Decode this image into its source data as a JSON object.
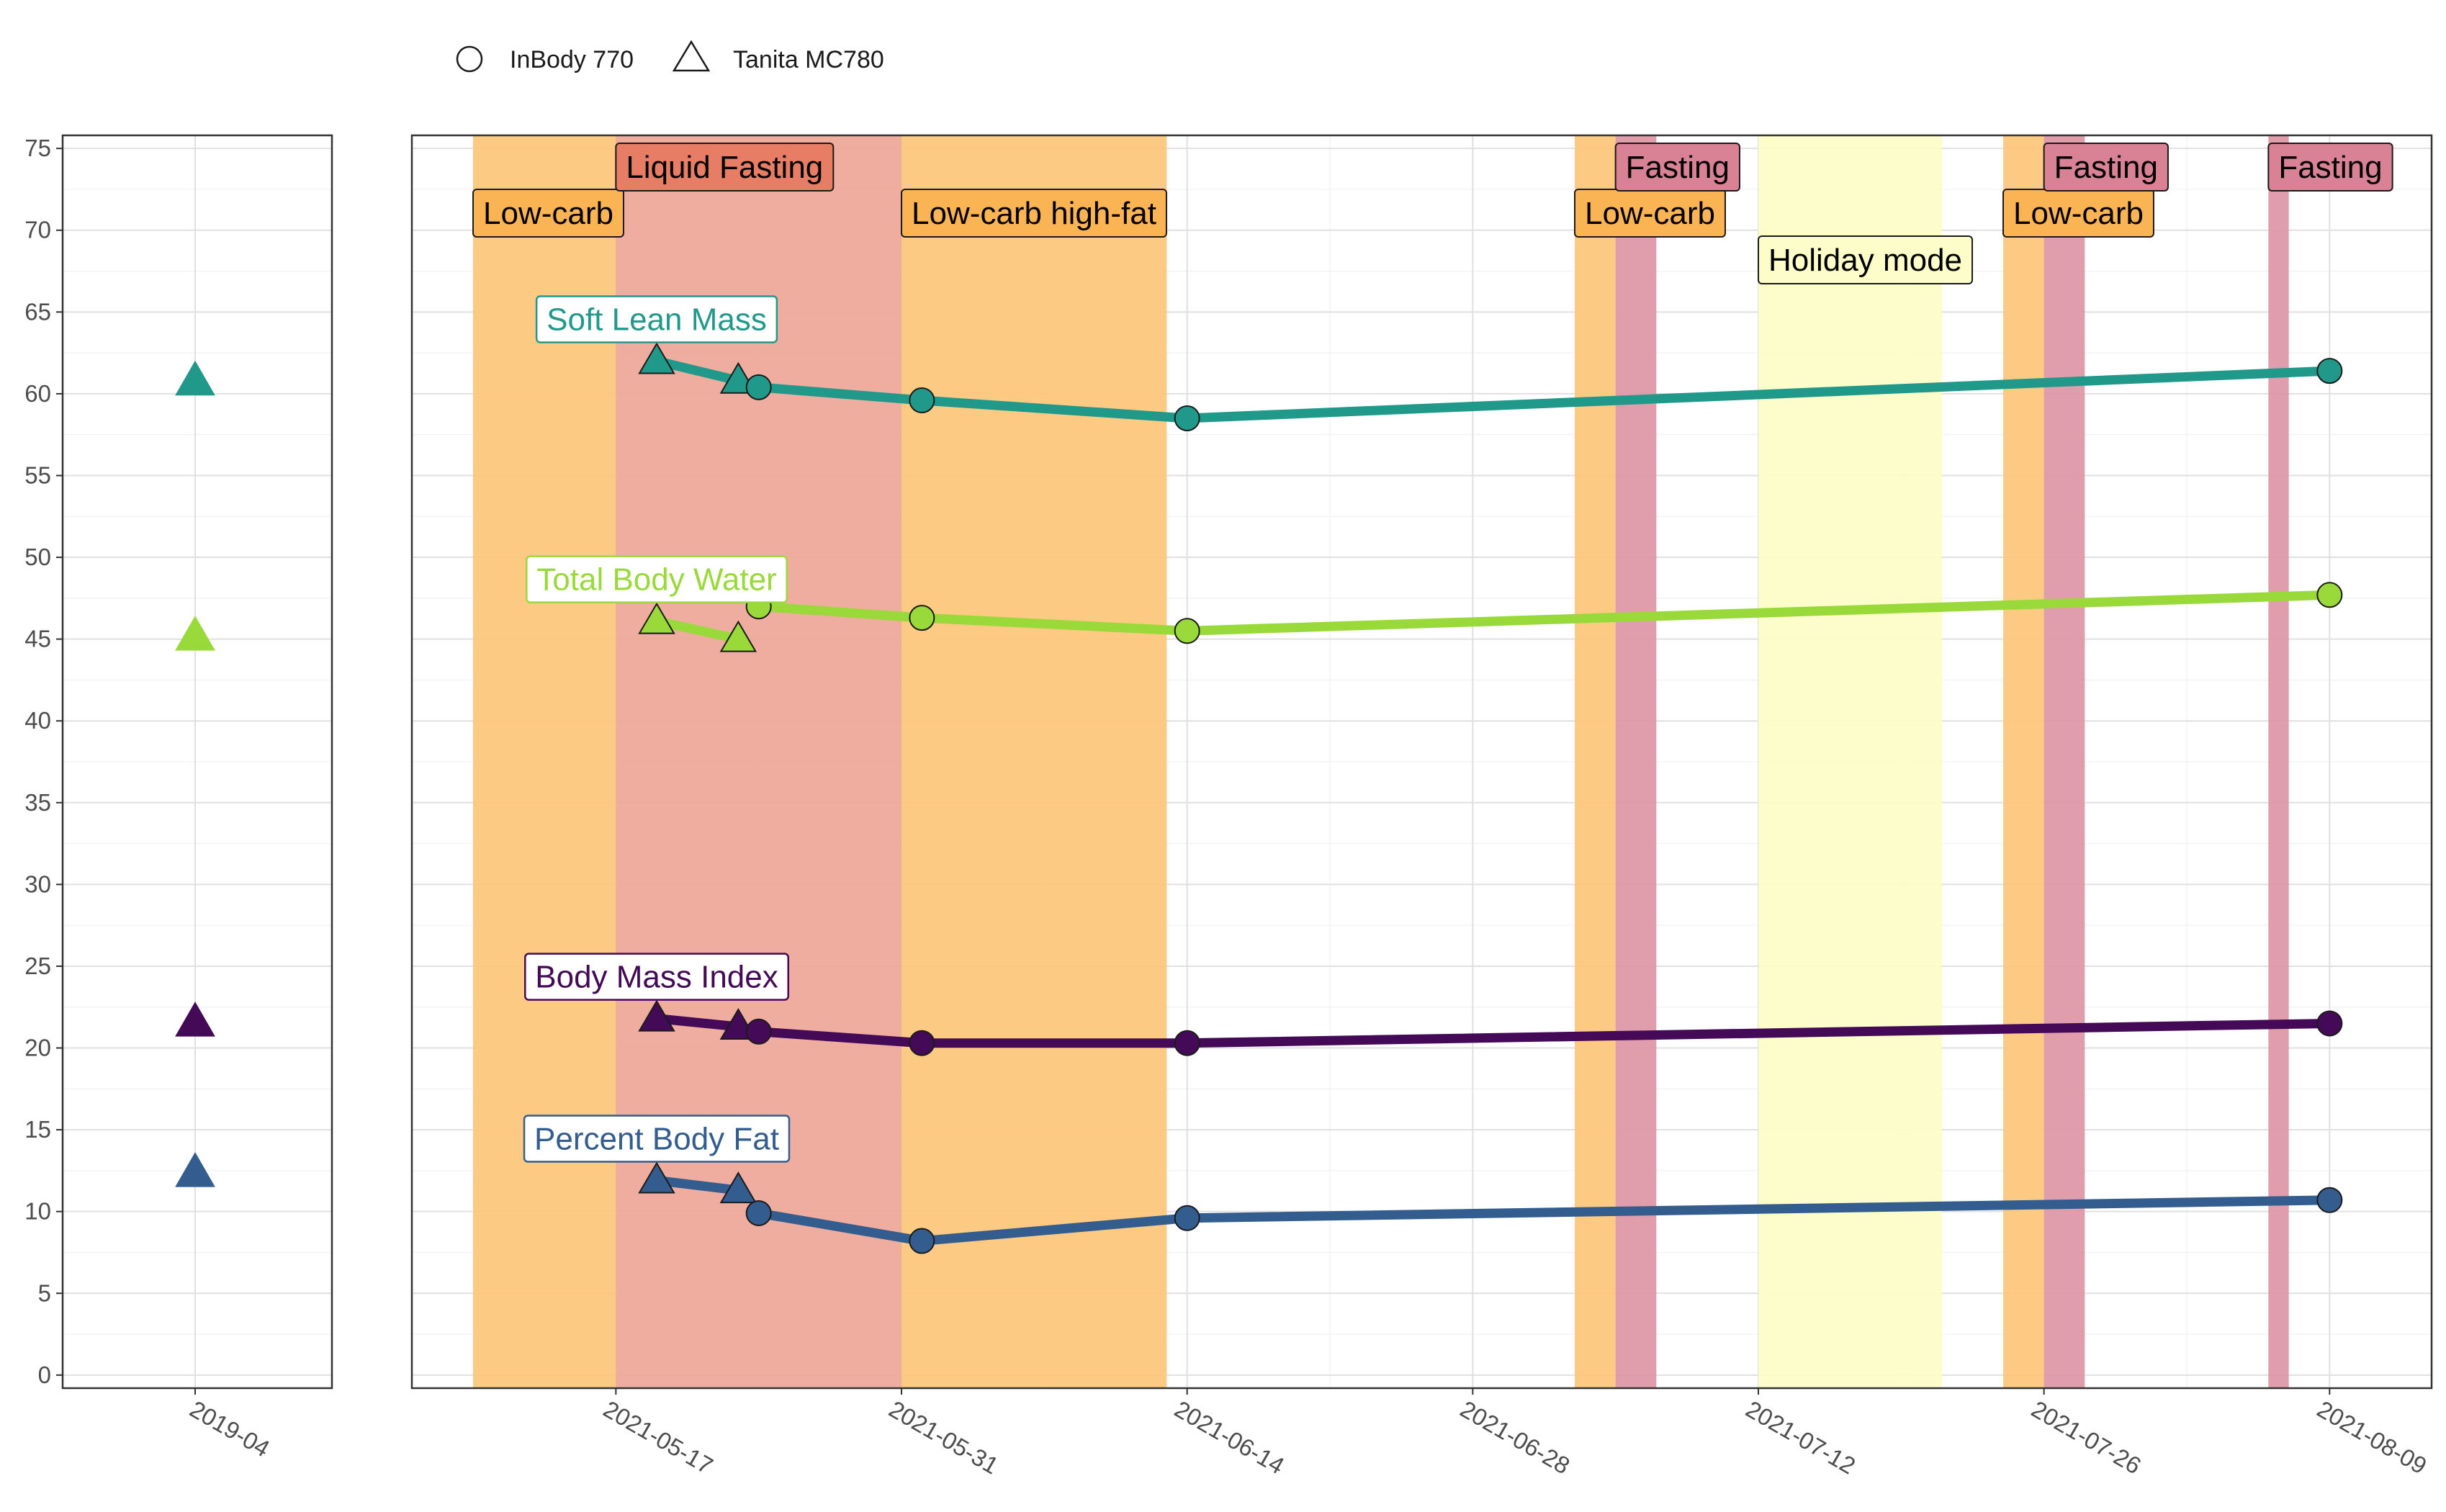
{
  "legend": {
    "items": [
      {
        "shape": "circle",
        "label": "InBody 770"
      },
      {
        "shape": "triangle",
        "label": "Tanita MC780"
      }
    ]
  },
  "chart_data": [
    {
      "type": "scatter",
      "panel": "left",
      "x_tick_labels": [
        "2019-04"
      ],
      "ylim": [
        0,
        75
      ],
      "y_ticks": [
        0,
        5,
        10,
        15,
        20,
        25,
        30,
        35,
        40,
        45,
        50,
        55,
        60,
        65,
        70,
        75
      ],
      "grid": true,
      "series": [
        {
          "name": "Soft Lean Mass",
          "color": "#21998a",
          "points": [
            {
              "x": "2019-04",
              "y": 60.8,
              "device": "Tanita MC780"
            }
          ]
        },
        {
          "name": "Total Body Water",
          "color": "#9ad93a",
          "points": [
            {
              "x": "2019-04",
              "y": 45.2,
              "device": "Tanita MC780"
            }
          ]
        },
        {
          "name": "Body Mass Index",
          "color": "#440a57",
          "points": [
            {
              "x": "2019-04",
              "y": 21.6,
              "device": "Tanita MC780"
            }
          ]
        },
        {
          "name": "Percent Body Fat",
          "color": "#335d8e",
          "points": [
            {
              "x": "2019-04",
              "y": 12.4,
              "device": "Tanita MC780"
            }
          ]
        }
      ]
    },
    {
      "type": "line",
      "panel": "right",
      "x_tick_labels": [
        "2021-05-17",
        "2021-05-31",
        "2021-06-14",
        "2021-06-28",
        "2021-07-12",
        "2021-07-26",
        "2021-08-09"
      ],
      "xlim": [
        "2021-05-07",
        "2021-08-14"
      ],
      "ylim": [
        0,
        75
      ],
      "grid": true,
      "phases": [
        {
          "label": "Low-carb",
          "start": "2021-05-10",
          "end": "2021-05-17",
          "color": "#fdc578",
          "label_row": 2
        },
        {
          "label": "Liquid Fasting",
          "start": "2021-05-17",
          "end": "2021-05-31",
          "color": "#eda697",
          "label_row": 1
        },
        {
          "label": "Low-carb high-fat",
          "start": "2021-05-31",
          "end": "2021-06-13",
          "color": "#fdc578",
          "label_row": 2
        },
        {
          "label": "Low-carb",
          "start": "2021-07-03",
          "end": "2021-07-05",
          "color": "#fdc578",
          "label_row": 2
        },
        {
          "label": "Fasting",
          "start": "2021-07-05",
          "end": "2021-07-07",
          "color": "#dd96a5",
          "label_row": 1
        },
        {
          "label": "Holiday mode",
          "start": "2021-07-12",
          "end": "2021-07-21",
          "color": "#fcfdc6",
          "label_row": 3
        },
        {
          "label": "Low-carb",
          "start": "2021-07-24",
          "end": "2021-07-26",
          "color": "#fdc578",
          "label_row": 2
        },
        {
          "label": "Fasting",
          "start": "2021-07-26",
          "end": "2021-07-28",
          "color": "#dd96a5",
          "label_row": 1
        },
        {
          "label": "Fasting",
          "start": "2021-08-06",
          "end": "2021-08-07",
          "color": "#dd96a5",
          "label_row": 1
        }
      ],
      "series": [
        {
          "name": "Soft Lean Mass",
          "color": "#21998a",
          "label_fill": "#ffffff",
          "points": [
            {
              "x": "2021-05-19",
              "y": 62.0,
              "device": "Tanita MC780"
            },
            {
              "x": "2021-05-23",
              "y": 60.8,
              "device": "Tanita MC780"
            },
            {
              "x": "2021-05-24",
              "y": 60.4,
              "device": "InBody 770"
            },
            {
              "x": "2021-06-01",
              "y": 59.6,
              "device": "InBody 770"
            },
            {
              "x": "2021-06-14",
              "y": 58.5,
              "device": "InBody 770"
            },
            {
              "x": "2021-08-09",
              "y": 61.4,
              "device": "InBody 770"
            }
          ]
        },
        {
          "name": "Total Body Water",
          "color": "#9ad93a",
          "label_fill": "#ffffff",
          "points": [
            {
              "x": "2021-05-19",
              "y": 46.1,
              "device": "Tanita MC780"
            },
            {
              "x": "2021-05-23",
              "y": 45.0,
              "device": "Tanita MC780"
            },
            {
              "x": "2021-05-24",
              "y": 47.0,
              "device": "InBody 770"
            },
            {
              "x": "2021-06-01",
              "y": 46.3,
              "device": "InBody 770"
            },
            {
              "x": "2021-06-14",
              "y": 45.5,
              "device": "InBody 770"
            },
            {
              "x": "2021-08-09",
              "y": 47.7,
              "device": "InBody 770"
            }
          ]
        },
        {
          "name": "Body Mass Index",
          "color": "#440a57",
          "label_fill": "#ffffff",
          "points": [
            {
              "x": "2021-05-19",
              "y": 21.8,
              "device": "Tanita MC780"
            },
            {
              "x": "2021-05-23",
              "y": 21.3,
              "device": "Tanita MC780"
            },
            {
              "x": "2021-05-24",
              "y": 21.0,
              "device": "InBody 770"
            },
            {
              "x": "2021-06-01",
              "y": 20.3,
              "device": "InBody 770"
            },
            {
              "x": "2021-06-14",
              "y": 20.3,
              "device": "InBody 770"
            },
            {
              "x": "2021-08-09",
              "y": 21.5,
              "device": "InBody 770"
            }
          ]
        },
        {
          "name": "Percent Body Fat",
          "color": "#335d8e",
          "label_fill": "#ffffff",
          "points": [
            {
              "x": "2021-05-19",
              "y": 11.9,
              "device": "Tanita MC780"
            },
            {
              "x": "2021-05-23",
              "y": 11.3,
              "device": "Tanita MC780"
            },
            {
              "x": "2021-05-24",
              "y": 9.9,
              "device": "InBody 770"
            },
            {
              "x": "2021-06-01",
              "y": 8.2,
              "device": "InBody 770"
            },
            {
              "x": "2021-06-14",
              "y": 9.6,
              "device": "InBody 770"
            },
            {
              "x": "2021-08-09",
              "y": 10.7,
              "device": "InBody 770"
            }
          ]
        }
      ]
    }
  ]
}
